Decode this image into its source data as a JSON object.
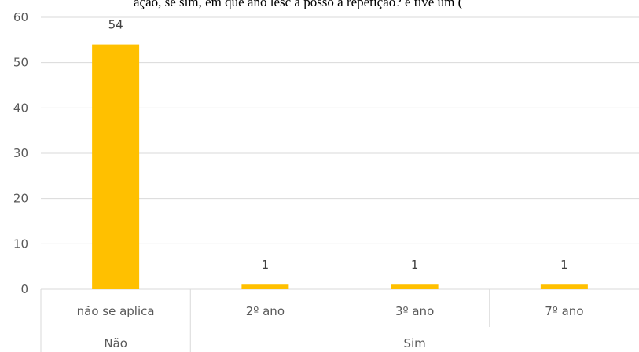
{
  "top_caption": "ação, se sim, em que ano lesc a posso a repetição? e tive um (",
  "chart_data": {
    "type": "bar",
    "title": "",
    "xlabel": "",
    "ylabel": "",
    "ylim": [
      0,
      60
    ],
    "yticks": [
      0,
      10,
      20,
      30,
      40,
      50,
      60
    ],
    "grid": true,
    "bar_color": "#FFC000",
    "gridline_color": "#D9D9D9",
    "categories": [
      "não se aplica",
      "2º ano",
      "3º ano",
      "7º ano"
    ],
    "groups": [
      {
        "label": "Não",
        "categories": [
          "não se aplica"
        ]
      },
      {
        "label": "Sim",
        "categories": [
          "2º ano",
          "3º ano",
          "7º ano"
        ]
      }
    ],
    "values": [
      54,
      1,
      1,
      1
    ],
    "data_labels": [
      "54",
      "1",
      "1",
      "1"
    ]
  }
}
